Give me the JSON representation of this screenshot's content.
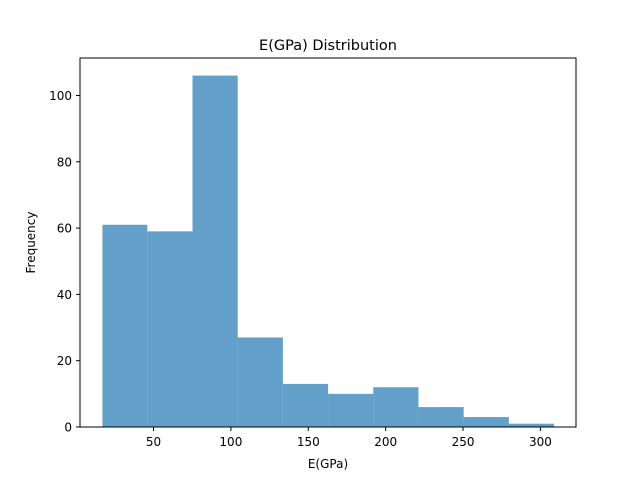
{
  "chart_data": {
    "type": "bar",
    "title": "E(GPa) Distribution",
    "xlabel": "E(GPa)",
    "ylabel": "Frequency",
    "bar_color": "#1f77b4",
    "bar_opacity": 0.7,
    "xlim": [
      2.5,
      323
    ],
    "ylim": [
      0,
      111.3
    ],
    "xticks": [
      50,
      100,
      150,
      200,
      250,
      300
    ],
    "yticks": [
      0,
      20,
      40,
      60,
      80,
      100
    ],
    "grid": false,
    "legend": "none",
    "bins": [
      {
        "x0": 17,
        "x1": 46,
        "count": 61
      },
      {
        "x0": 46,
        "x1": 75.2,
        "count": 59
      },
      {
        "x0": 75.2,
        "x1": 104.4,
        "count": 106
      },
      {
        "x0": 104.4,
        "x1": 133.6,
        "count": 27
      },
      {
        "x0": 133.6,
        "x1": 162.8,
        "count": 13
      },
      {
        "x0": 162.8,
        "x1": 192,
        "count": 10
      },
      {
        "x0": 192,
        "x1": 221.2,
        "count": 12
      },
      {
        "x0": 221.2,
        "x1": 250.4,
        "count": 6
      },
      {
        "x0": 250.4,
        "x1": 279.6,
        "count": 3
      },
      {
        "x0": 279.6,
        "x1": 308.8,
        "count": 1
      }
    ]
  }
}
